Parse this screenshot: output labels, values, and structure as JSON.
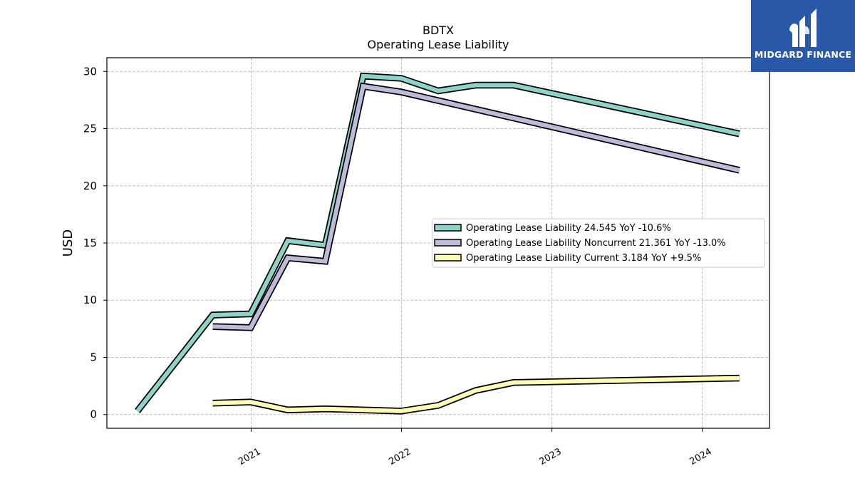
{
  "logo": {
    "text": "MIDGARD FINANCE",
    "icon": "midgard-finance-logo-icon",
    "background": "#2a58a8"
  },
  "chart_data": {
    "type": "line",
    "title": "BDTX",
    "subtitle": "Operating Lease Liability",
    "ylabel": "USD",
    "xlabel": "",
    "ylim": [
      -1.2,
      31.2
    ],
    "xlim": [
      "2020-01-17",
      "2024-06-12"
    ],
    "yticks": [
      0,
      5,
      10,
      15,
      20,
      25,
      30
    ],
    "xticks": [
      "2021",
      "2022",
      "2023",
      "2024"
    ],
    "grid": true,
    "legend_position": "center-right",
    "series": [
      {
        "name": "Operating Lease Liability",
        "legend": "Operating Lease Liability  24.545 YoY -10.6%",
        "color": "#8dd3c7",
        "x": [
          "2020-03-31",
          "2020-09-30",
          "2020-12-31",
          "2021-03-31",
          "2021-06-30",
          "2021-09-30",
          "2021-12-31",
          "2022-03-31",
          "2022-06-30",
          "2022-09-30",
          "2024-03-31"
        ],
        "values": [
          0.3,
          8.7,
          8.8,
          15.2,
          14.8,
          29.6,
          29.4,
          28.3,
          28.8,
          28.8,
          24.545
        ]
      },
      {
        "name": "Operating Lease Liability Noncurrent",
        "legend": "Operating Lease Liability Noncurrent  21.361 YoY -13.0%",
        "color": "#bebada",
        "x": [
          "2020-09-30",
          "2020-12-31",
          "2021-03-31",
          "2021-06-30",
          "2021-09-30",
          "2021-12-31",
          "2024-03-31"
        ],
        "values": [
          7.7,
          7.6,
          13.7,
          13.4,
          28.7,
          28.2,
          21.361
        ]
      },
      {
        "name": "Operating Lease Liability Current",
        "legend": "Operating Lease Liability Current  3.184 YoY +9.5%",
        "color": "#ffffb3",
        "x": [
          "2020-09-30",
          "2020-12-31",
          "2021-03-31",
          "2021-06-30",
          "2021-12-31",
          "2022-03-31",
          "2022-06-30",
          "2022-09-30",
          "2024-03-31"
        ],
        "values": [
          1.0,
          1.1,
          0.4,
          0.5,
          0.3,
          0.8,
          2.1,
          2.8,
          3.184
        ]
      }
    ]
  }
}
